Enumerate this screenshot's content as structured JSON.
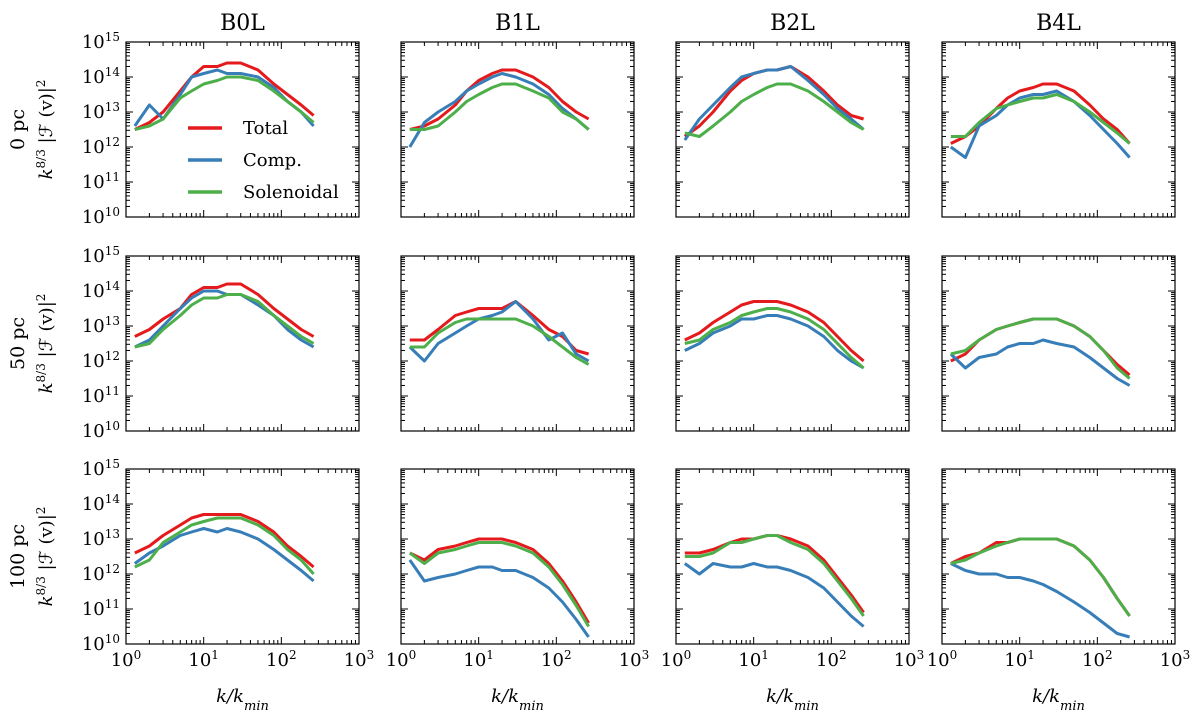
{
  "legend": {
    "entries": [
      {
        "label": "Total",
        "color": "#e41a1c"
      },
      {
        "label": "Comp.",
        "color": "#377eb8"
      },
      {
        "label": "Solenoidal",
        "color": "#4daf4a"
      }
    ],
    "placement": "inside first panel, lower-left"
  },
  "columns": [
    "B0L",
    "B1L",
    "B2L",
    "B4L"
  ],
  "rows": [
    "0 pc",
    "50 pc",
    "100 pc"
  ],
  "ylabel_expr": "k^{8/3} |F(v)|^2",
  "xlabel_expr": "k/k_min",
  "chart_data": {
    "type": "line",
    "grid": false,
    "xscale": "log",
    "yscale": "log",
    "xlim": [
      1,
      1000
    ],
    "ylim": [
      10000000000.0,
      1000000000000000.0
    ],
    "x_tick_labels": [
      "10^0",
      "10^1",
      "10^2",
      "10^3"
    ],
    "y_tick_labels": [
      "10^10",
      "10^11",
      "10^12",
      "10^13",
      "10^14",
      "10^15"
    ],
    "series_order": [
      "Total",
      "Comp.",
      "Solenoidal"
    ],
    "x": [
      1.3,
      2,
      3,
      5,
      7,
      10,
      15,
      20,
      30,
      50,
      80,
      120,
      180,
      260
    ],
    "panels": [
      {
        "row": "0 pc",
        "col": "B0L",
        "series": {
          "Total": [
            12.5,
            12.7,
            13.0,
            13.6,
            14.0,
            14.3,
            14.3,
            14.4,
            14.4,
            14.2,
            13.8,
            13.5,
            13.2,
            12.9
          ],
          "Comp.": [
            12.6,
            13.2,
            12.8,
            13.5,
            14.0,
            14.1,
            14.2,
            14.1,
            14.1,
            14.0,
            13.7,
            13.3,
            13.0,
            12.6
          ],
          "Solenoidal": [
            12.5,
            12.6,
            12.8,
            13.4,
            13.6,
            13.8,
            13.9,
            14.0,
            14.0,
            13.9,
            13.6,
            13.3,
            13.0,
            12.7
          ]
        }
      },
      {
        "row": "0 pc",
        "col": "B1L",
        "series": {
          "Total": [
            12.5,
            12.6,
            12.8,
            13.2,
            13.6,
            13.9,
            14.1,
            14.2,
            14.2,
            14.0,
            13.7,
            13.3,
            13.0,
            12.8
          ],
          "Comp.": [
            12.0,
            12.7,
            13.0,
            13.3,
            13.6,
            13.8,
            14.0,
            14.1,
            14.0,
            13.8,
            13.5,
            13.1,
            12.8,
            12.5
          ],
          "Solenoidal": [
            12.5,
            12.5,
            12.6,
            13.0,
            13.3,
            13.5,
            13.7,
            13.8,
            13.8,
            13.6,
            13.4,
            13.0,
            12.8,
            12.5
          ]
        }
      },
      {
        "row": "0 pc",
        "col": "B2L",
        "series": {
          "Total": [
            12.3,
            12.6,
            13.0,
            13.6,
            13.9,
            14.1,
            14.2,
            14.2,
            14.3,
            14.0,
            13.6,
            13.2,
            12.9,
            12.8
          ],
          "Comp.": [
            12.2,
            12.8,
            13.2,
            13.7,
            14.0,
            14.1,
            14.2,
            14.2,
            14.3,
            13.9,
            13.5,
            13.1,
            12.8,
            12.5
          ],
          "Solenoidal": [
            12.4,
            12.3,
            12.6,
            13.0,
            13.3,
            13.5,
            13.7,
            13.8,
            13.8,
            13.6,
            13.3,
            13.0,
            12.7,
            12.5
          ]
        }
      },
      {
        "row": "0 pc",
        "col": "B4L",
        "series": {
          "Total": [
            12.1,
            12.3,
            12.6,
            13.1,
            13.4,
            13.6,
            13.7,
            13.8,
            13.8,
            13.6,
            13.2,
            12.8,
            12.5,
            12.1
          ],
          "Comp.": [
            12.0,
            11.7,
            12.6,
            12.9,
            13.2,
            13.4,
            13.5,
            13.5,
            13.6,
            13.3,
            12.9,
            12.5,
            12.1,
            11.7
          ],
          "Solenoidal": [
            12.3,
            12.3,
            12.7,
            13.1,
            13.2,
            13.3,
            13.4,
            13.4,
            13.5,
            13.3,
            13.0,
            12.7,
            12.4,
            12.1
          ]
        }
      },
      {
        "row": "50 pc",
        "col": "B0L",
        "series": {
          "Total": [
            12.7,
            12.9,
            13.2,
            13.5,
            13.9,
            14.1,
            14.1,
            14.2,
            14.2,
            13.9,
            13.5,
            13.2,
            12.9,
            12.7
          ],
          "Comp.": [
            12.4,
            12.6,
            13.0,
            13.5,
            13.8,
            14.0,
            14.0,
            13.9,
            13.9,
            13.6,
            13.3,
            12.9,
            12.6,
            12.4
          ],
          "Solenoidal": [
            12.4,
            12.5,
            12.9,
            13.3,
            13.6,
            13.8,
            13.8,
            13.9,
            13.9,
            13.7,
            13.3,
            13.0,
            12.7,
            12.5
          ]
        }
      },
      {
        "row": "50 pc",
        "col": "B1L",
        "series": {
          "Total": [
            12.6,
            12.6,
            12.9,
            13.3,
            13.4,
            13.5,
            13.5,
            13.5,
            13.7,
            13.3,
            12.9,
            12.7,
            12.3,
            12.2
          ],
          "Comp.": [
            12.4,
            12.0,
            12.5,
            12.8,
            13.0,
            13.2,
            13.3,
            13.4,
            13.7,
            13.2,
            12.6,
            12.8,
            12.2,
            12.0
          ],
          "Solenoidal": [
            12.4,
            12.4,
            12.8,
            13.1,
            13.2,
            13.2,
            13.2,
            13.2,
            13.2,
            13.0,
            12.7,
            12.4,
            12.1,
            11.9
          ]
        }
      },
      {
        "row": "50 pc",
        "col": "B2L",
        "series": {
          "Total": [
            12.6,
            12.8,
            13.1,
            13.4,
            13.6,
            13.7,
            13.7,
            13.7,
            13.6,
            13.4,
            13.1,
            12.7,
            12.3,
            12.0
          ],
          "Comp.": [
            12.3,
            12.5,
            12.8,
            13.0,
            13.2,
            13.2,
            13.3,
            13.3,
            13.2,
            13.0,
            12.7,
            12.3,
            12.0,
            11.8
          ],
          "Solenoidal": [
            12.5,
            12.6,
            12.9,
            13.1,
            13.3,
            13.4,
            13.5,
            13.5,
            13.4,
            13.2,
            12.9,
            12.5,
            12.1,
            11.8
          ]
        }
      },
      {
        "row": "50 pc",
        "col": "B4L",
        "series": {
          "Total": [
            12.0,
            12.2,
            12.6,
            12.9,
            13.0,
            13.1,
            13.2,
            13.2,
            13.2,
            13.0,
            12.7,
            12.3,
            11.9,
            11.6
          ],
          "Comp.": [
            12.2,
            11.8,
            12.1,
            12.2,
            12.4,
            12.5,
            12.5,
            12.6,
            12.5,
            12.4,
            12.1,
            11.8,
            11.5,
            11.3
          ],
          "Solenoidal": [
            12.2,
            12.3,
            12.6,
            12.9,
            13.0,
            13.1,
            13.2,
            13.2,
            13.2,
            13.0,
            12.7,
            12.3,
            11.8,
            11.5
          ]
        }
      },
      {
        "row": "100 pc",
        "col": "B0L",
        "series": {
          "Total": [
            12.6,
            12.8,
            13.1,
            13.4,
            13.6,
            13.7,
            13.7,
            13.7,
            13.7,
            13.5,
            13.2,
            12.8,
            12.5,
            12.2
          ],
          "Comp.": [
            12.3,
            12.6,
            12.8,
            13.1,
            13.2,
            13.3,
            13.2,
            13.3,
            13.2,
            13.0,
            12.7,
            12.4,
            12.1,
            11.8
          ],
          "Solenoidal": [
            12.2,
            12.4,
            12.9,
            13.2,
            13.4,
            13.5,
            13.6,
            13.6,
            13.6,
            13.4,
            13.1,
            12.7,
            12.4,
            12.0
          ]
        }
      },
      {
        "row": "100 pc",
        "col": "B1L",
        "series": {
          "Total": [
            12.6,
            12.4,
            12.7,
            12.8,
            12.9,
            13.0,
            13.0,
            13.0,
            12.9,
            12.7,
            12.3,
            11.8,
            11.2,
            10.6
          ],
          "Comp.": [
            12.4,
            11.8,
            11.9,
            12.0,
            12.1,
            12.2,
            12.2,
            12.1,
            12.1,
            11.9,
            11.6,
            11.2,
            10.7,
            10.2
          ],
          "Solenoidal": [
            12.6,
            12.3,
            12.6,
            12.7,
            12.8,
            12.9,
            12.9,
            12.9,
            12.8,
            12.6,
            12.2,
            11.7,
            11.1,
            10.5
          ]
        }
      },
      {
        "row": "100 pc",
        "col": "B2L",
        "series": {
          "Total": [
            12.6,
            12.6,
            12.7,
            12.9,
            13.0,
            13.0,
            13.1,
            13.1,
            13.0,
            12.8,
            12.4,
            11.9,
            11.4,
            10.9
          ],
          "Comp.": [
            12.3,
            12.0,
            12.3,
            12.2,
            12.2,
            12.3,
            12.2,
            12.2,
            12.1,
            11.9,
            11.6,
            11.2,
            10.8,
            10.5
          ],
          "Solenoidal": [
            12.5,
            12.5,
            12.6,
            12.9,
            12.9,
            13.0,
            13.1,
            13.1,
            12.9,
            12.7,
            12.3,
            11.8,
            11.3,
            10.8
          ]
        }
      },
      {
        "row": "100 pc",
        "col": "B4L",
        "series": {
          "Total": [
            12.3,
            12.5,
            12.6,
            12.9,
            12.9,
            13.0,
            13.0,
            13.0,
            13.0,
            12.8,
            12.4,
            11.9,
            11.3,
            10.8
          ],
          "Comp.": [
            12.3,
            12.1,
            12.0,
            12.0,
            11.9,
            11.9,
            11.8,
            11.7,
            11.5,
            11.2,
            10.9,
            10.6,
            10.3,
            10.2
          ],
          "Solenoidal": [
            12.3,
            12.4,
            12.6,
            12.8,
            12.9,
            13.0,
            13.0,
            13.0,
            13.0,
            12.8,
            12.4,
            11.9,
            11.3,
            10.8
          ]
        }
      }
    ]
  }
}
